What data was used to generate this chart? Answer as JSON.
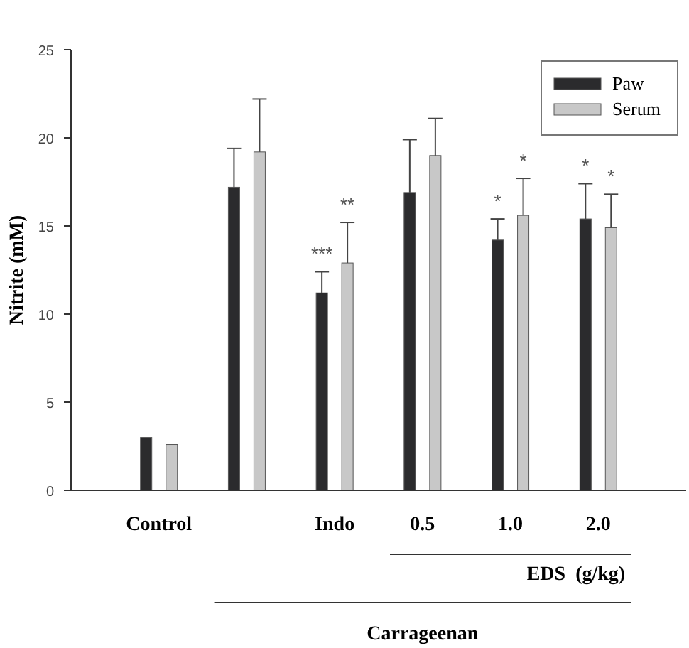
{
  "chart_data": {
    "type": "bar",
    "ylabel": "Nitrite (mM)",
    "categories": [
      "Control",
      null,
      "Indo",
      "0.5",
      "1.0",
      "2.0"
    ],
    "series": [
      {
        "name": "Paw",
        "color": "#2b2b2d",
        "values": [
          3.0,
          17.2,
          11.2,
          16.9,
          14.2,
          15.4
        ],
        "errors": [
          null,
          [
            17.2,
            19.4
          ],
          [
            11.2,
            12.4
          ],
          [
            16.9,
            19.9
          ],
          [
            14.2,
            15.4
          ],
          [
            15.4,
            17.4
          ]
        ]
      },
      {
        "name": "Serum",
        "color": "#c8c8c8",
        "values": [
          2.6,
          19.2,
          12.9,
          19.0,
          15.6,
          14.9
        ],
        "errors": [
          null,
          [
            19.2,
            22.2
          ],
          [
            12.9,
            15.2
          ],
          [
            19.0,
            21.1
          ],
          [
            15.6,
            17.7
          ],
          [
            14.9,
            16.8
          ]
        ]
      }
    ],
    "ylim": [
      0,
      25
    ],
    "yticks": [
      0,
      5,
      10,
      15,
      20,
      25
    ],
    "grid": false,
    "legend": "top right",
    "annotations": [
      {
        "text": "***",
        "x": "Indo",
        "y": 12.4
      },
      {
        "text": "**",
        "x": "Indo",
        "y": 15.2
      },
      {
        "text": "*",
        "x": "1.0",
        "y": 15.4
      },
      {
        "text": "*",
        "x": "1.0",
        "y": 17.7
      },
      {
        "text": "*",
        "x": "2.0",
        "y": 17.4
      },
      {
        "text": "*",
        "x": "2.0",
        "y": 16.8
      },
      "EDS  (g/kg)",
      "Carrageenan"
    ]
  }
}
